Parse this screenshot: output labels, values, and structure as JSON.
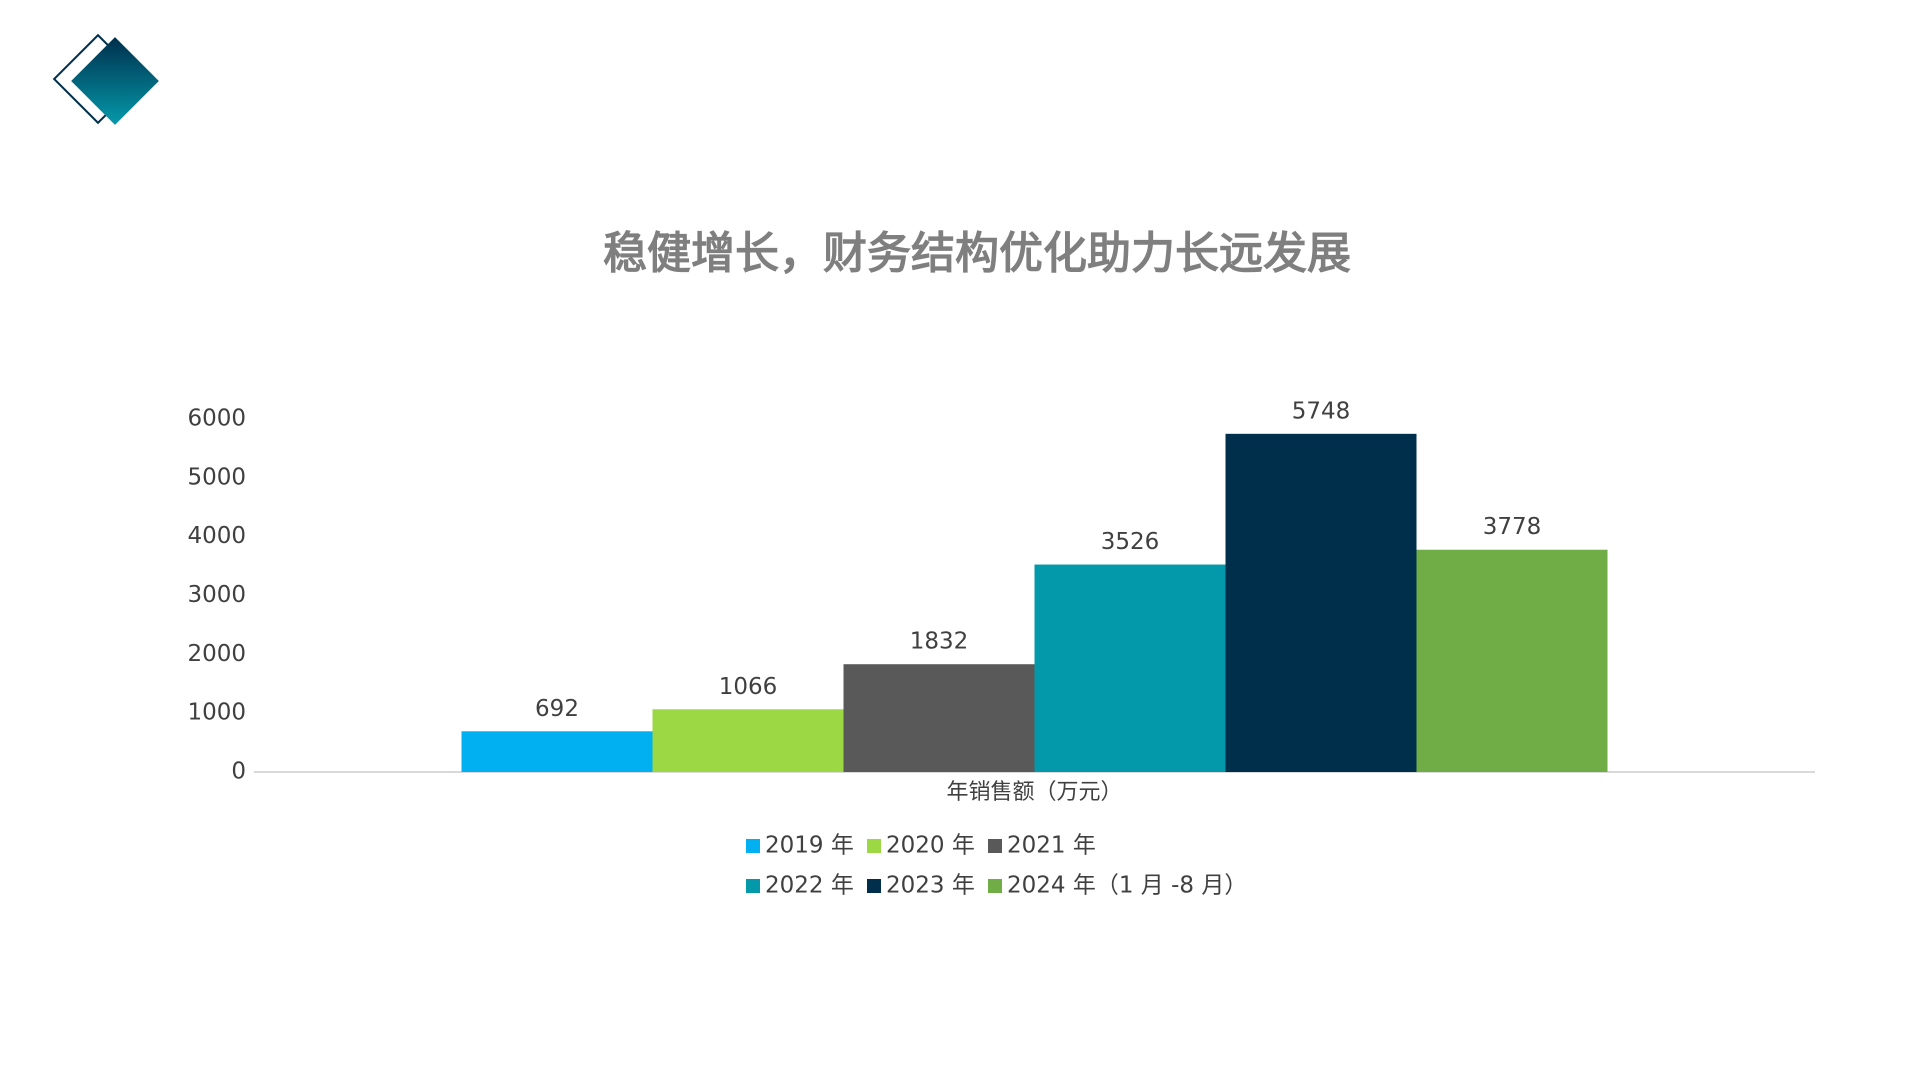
{
  "chart_data": {
    "type": "bar",
    "title": "稳健增长，财务结构优化助力长远发展",
    "categories": [
      "年销售额（万元）"
    ],
    "series": [
      {
        "name": "2019 年",
        "color": "#00b0f0",
        "values": [
          692
        ]
      },
      {
        "name": "2020 年",
        "color": "#9bd843",
        "values": [
          1066
        ]
      },
      {
        "name": "2021 年",
        "color": "#595959",
        "values": [
          1832
        ]
      },
      {
        "name": "2022 年",
        "color": "#0499aa",
        "values": [
          3526
        ]
      },
      {
        "name": "2023 年",
        "color": "#002f4c",
        "values": [
          5748
        ]
      },
      {
        "name": "2024 年（1 月 -8 月）",
        "color": "#70ad47",
        "values": [
          3778
        ]
      }
    ],
    "ylim": [
      0,
      6000
    ],
    "yticks": [
      0,
      1000,
      2000,
      3000,
      4000,
      5000,
      6000
    ],
    "grid": false,
    "data_labels": true,
    "legend": "bottom"
  }
}
